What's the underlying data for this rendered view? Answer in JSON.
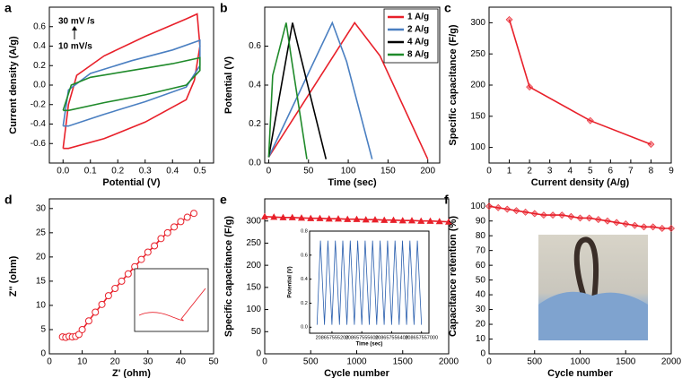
{
  "chart_data": [
    {
      "type": "line",
      "label": "a",
      "xlabel": "Potential (V)",
      "ylabel": "Current density (A/g)",
      "xlim": [
        -0.05,
        0.55
      ],
      "ylim": [
        -0.8,
        0.8
      ],
      "xticks": [
        {
          "value": 0,
          "label": "0.0"
        },
        0.1,
        0.2,
        0.3,
        0.4,
        0.5
      ],
      "yticks": [
        -0.6,
        -0.4,
        -0.2,
        {
          "value": 0,
          "label": "0.0"
        },
        0.2,
        0.4,
        0.6
      ],
      "annotations": [
        "30 mV /s",
        "10 mV/s"
      ],
      "series": [
        {
          "color": "#e8202a",
          "x": [
            0,
            0.02,
            0.05,
            0.15,
            0.3,
            0.45,
            0.49,
            0.5,
            0.48,
            0.45,
            0.3,
            0.15,
            0.02,
            0
          ],
          "y": [
            -0.65,
            -0.2,
            0.1,
            0.3,
            0.5,
            0.68,
            0.73,
            0.4,
            0.05,
            -0.15,
            -0.38,
            -0.55,
            -0.65,
            -0.65
          ]
        },
        {
          "color": "#4a7fc1",
          "x": [
            0,
            0.02,
            0.1,
            0.25,
            0.4,
            0.5,
            0.5,
            0.45,
            0.3,
            0.15,
            0.02,
            0
          ],
          "y": [
            -0.42,
            -0.05,
            0.12,
            0.25,
            0.36,
            0.46,
            0.2,
            -0.02,
            -0.17,
            -0.3,
            -0.42,
            -0.42
          ]
        },
        {
          "color": "#1f8a2a",
          "x": [
            0,
            0.03,
            0.1,
            0.25,
            0.4,
            0.5,
            0.5,
            0.45,
            0.3,
            0.15,
            0.02,
            0
          ],
          "y": [
            -0.26,
            0,
            0.08,
            0.15,
            0.22,
            0.28,
            0.15,
            0,
            -0.1,
            -0.18,
            -0.26,
            -0.26
          ]
        }
      ]
    },
    {
      "type": "line",
      "label": "b",
      "xlabel": "Time (sec)",
      "ylabel": "Potential (V)",
      "xlim": [
        -5,
        215
      ],
      "ylim": [
        0,
        0.8
      ],
      "xticks": [
        0,
        50,
        100,
        150,
        200
      ],
      "yticks": [
        {
          "value": 0,
          "label": "0.0"
        },
        0.2,
        0.4,
        0.6
      ],
      "legend": true,
      "series": [
        {
          "name": "1 A/g",
          "color": "#e8202a",
          "x": [
            0,
            108,
            140,
            200
          ],
          "y": [
            0.03,
            0.72,
            0.55,
            0.02
          ]
        },
        {
          "name": "2 A/g",
          "color": "#4a7fc1",
          "x": [
            0,
            80,
            98,
            130
          ],
          "y": [
            0.03,
            0.72,
            0.52,
            0.02
          ]
        },
        {
          "name": "4 A/g",
          "color": "#000000",
          "x": [
            0,
            30,
            40,
            72
          ],
          "y": [
            0.03,
            0.72,
            0.55,
            0.02
          ]
        },
        {
          "name": "8 A/g",
          "color": "#1f8a2a",
          "x": [
            0,
            5,
            22,
            28,
            48
          ],
          "y": [
            0.03,
            0.45,
            0.72,
            0.55,
            0.02
          ]
        }
      ]
    },
    {
      "type": "line",
      "label": "c",
      "xlabel": "Current density (A/g)",
      "ylabel": "Specific capacitance (F/g)",
      "xlim": [
        0,
        9
      ],
      "ylim": [
        75,
        325
      ],
      "xticks": [
        0,
        1,
        2,
        3,
        4,
        5,
        6,
        7,
        8,
        9
      ],
      "yticks": [
        100,
        150,
        200,
        250,
        300
      ],
      "marker": "diamond",
      "series": [
        {
          "color": "#e8202a",
          "x": [
            1,
            2,
            5,
            8
          ],
          "y": [
            305,
            197,
            143,
            105
          ]
        }
      ]
    },
    {
      "type": "line",
      "label": "d",
      "xlabel": "Z' (ohm)",
      "ylabel": "Z'' (ohm)",
      "xlim": [
        0,
        50
      ],
      "ylim": [
        0,
        32
      ],
      "xticks": [
        0,
        10,
        20,
        30,
        40,
        50
      ],
      "yticks": [
        0,
        5,
        10,
        15,
        20,
        25,
        30
      ],
      "marker": "circle",
      "series": [
        {
          "color": "#e8202a",
          "x": [
            4,
            5,
            6,
            7,
            8,
            9,
            10,
            12,
            14,
            16,
            18,
            20,
            22,
            24,
            26,
            28,
            30,
            32,
            34,
            36,
            38,
            40,
            42,
            44
          ],
          "y": [
            3.5,
            3.4,
            3.6,
            3.5,
            3.6,
            4,
            5,
            6.8,
            8.6,
            10.2,
            12,
            13.5,
            15,
            16.5,
            18,
            19.5,
            21,
            22.3,
            23.8,
            25,
            26.2,
            27.3,
            28.2,
            29
          ]
        }
      ]
    },
    {
      "type": "line",
      "label": "e",
      "xlabel": "Cycle number",
      "ylabel": "Specific capacitance (F/g)",
      "xlim": [
        0,
        2000
      ],
      "ylim": [
        0,
        350
      ],
      "xticks": [
        0,
        500,
        1000,
        1500,
        2000
      ],
      "yticks": [
        0,
        50,
        100,
        150,
        200,
        250,
        300
      ],
      "marker": "triangle",
      "series": [
        {
          "color": "#e8202a",
          "x": [
            0,
            100,
            200,
            300,
            400,
            500,
            600,
            700,
            800,
            900,
            1000,
            1100,
            1200,
            1300,
            1400,
            1500,
            1600,
            1700,
            1800,
            1900,
            2000
          ],
          "y": [
            310,
            309,
            308,
            308,
            307,
            306,
            306,
            305,
            305,
            304,
            304,
            303,
            303,
            302,
            302,
            301,
            301,
            300,
            300,
            299,
            298
          ]
        }
      ]
    },
    {
      "type": "line",
      "label": "f",
      "xlabel": "Cycle number",
      "ylabel": "Capacitance retention (%)",
      "xlim": [
        0,
        2000
      ],
      "ylim": [
        0,
        105
      ],
      "xticks": [
        0,
        500,
        1000,
        1500,
        2000
      ],
      "yticks": [
        0,
        10,
        20,
        30,
        40,
        50,
        60,
        70,
        80,
        90,
        100
      ],
      "marker": "diamond",
      "series": [
        {
          "color": "#e8202a",
          "x": [
            0,
            100,
            200,
            300,
            400,
            500,
            600,
            700,
            800,
            900,
            1000,
            1100,
            1200,
            1300,
            1400,
            1500,
            1600,
            1700,
            1800,
            1900,
            2000
          ],
          "y": [
            100,
            99,
            98,
            97,
            96,
            95,
            94,
            94,
            94,
            93,
            92,
            92,
            91,
            90,
            89,
            88,
            87,
            86,
            86,
            85,
            85
          ]
        }
      ]
    },
    {
      "type": "line",
      "xlabel": "Time (sec)",
      "ylabel": "Potential (V)",
      "xlim": [
        0,
        16
      ],
      "ylim": [
        -0.05,
        0.8
      ],
      "xticks": [
        {
          "value": 3,
          "label": "208657555200"
        },
        {
          "value": 7,
          "label": "208657555600"
        },
        {
          "value": 11,
          "label": "208657556400"
        },
        {
          "value": 15,
          "label": "208657557000"
        }
      ],
      "yticks": [
        {
          "value": 0,
          "label": "0.0"
        },
        0.2,
        0.4,
        0.6,
        0.8
      ],
      "series": [
        {
          "color": "#2a5fae",
          "x": [
            1,
            1.45,
            2,
            2.45,
            3,
            3.45,
            4,
            4.45,
            5,
            5.45,
            6,
            6.45,
            7,
            7.45,
            8,
            8.45,
            9,
            9.45,
            10,
            10.45,
            11,
            11.45,
            12,
            12.45,
            13,
            13.45,
            14,
            14.45,
            15
          ],
          "y": [
            0.02,
            0.72,
            0.02,
            0.72,
            0.02,
            0.72,
            0.02,
            0.72,
            0.02,
            0.72,
            0.02,
            0.72,
            0.02,
            0.72,
            0.02,
            0.72,
            0.02,
            0.72,
            0.02,
            0.72,
            0.02,
            0.72,
            0.02,
            0.72,
            0.02,
            0.72,
            0.02,
            0.72,
            0.02
          ]
        }
      ]
    }
  ]
}
